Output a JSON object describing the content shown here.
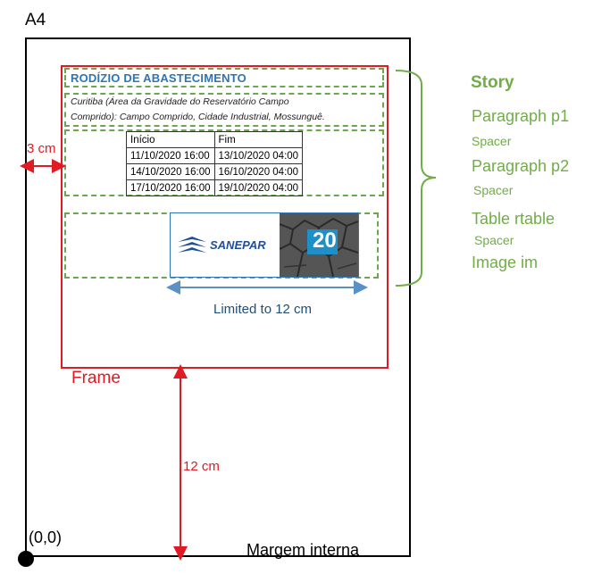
{
  "page": {
    "label": "A4"
  },
  "frame": {
    "label": "Frame"
  },
  "story": {
    "title": "RODÍZIO DE ABASTECIMENTO",
    "paragraph_line1": "Curitiba (Área da Gravidade do Reservatório Campo",
    "paragraph_line2": "Comprido): Campo Comprido, Cidade Industrial, Mossunguê.",
    "table": {
      "headers": [
        "Início",
        "Fim"
      ],
      "rows": [
        [
          "11/10/2020 16:00",
          "13/10/2020 04:00"
        ],
        [
          "14/10/2020 16:00",
          "16/10/2020 04:00"
        ],
        [
          "17/10/2020 16:00",
          "19/10/2020 04:00"
        ]
      ]
    },
    "image": {
      "logo_text": "SANEPAR",
      "photo_number": "20"
    }
  },
  "annotations": {
    "left_margin": "3 cm",
    "image_limit": "Limited to 12 cm",
    "bottom_distance": "12 cm",
    "origin": "(0,0)",
    "inner_margin": "Margem interna"
  },
  "legend": {
    "story": "Story",
    "p1": "Paragraph p1",
    "spacer1": "Spacer",
    "p2": "Paragraph p2",
    "spacer2": "Spacer",
    "table": "Table rtable",
    "spacer3": "Spacer",
    "image": "Image im"
  },
  "colors": {
    "frame": "#e01b24",
    "story": "#70ad47",
    "title": "#2e75b6",
    "measure": "#1f4e79"
  }
}
